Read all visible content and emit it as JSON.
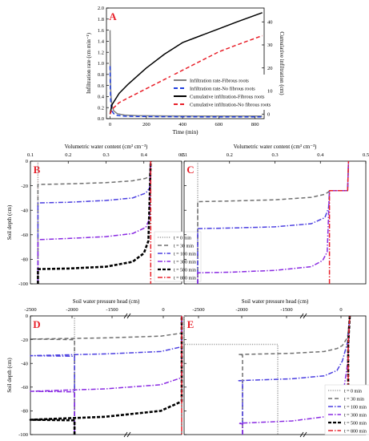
{
  "chart_data": [
    {
      "panel": "A",
      "type": "line",
      "xlabel": "Time (min)",
      "ylabel": "Infiltration rate (cm min⁻¹)",
      "y2label": "Cumulative infiltration (cm)",
      "xlim": [
        -20,
        850
      ],
      "ylim": [
        0,
        2.0
      ],
      "y2lim": [
        -2,
        46
      ],
      "xticks": [
        0,
        200,
        400,
        600,
        800
      ],
      "yticks": [
        "0.0",
        "0.2",
        "0.4",
        "0.6",
        "0.8",
        "1.0",
        "1.2",
        "1.4",
        "1.6",
        "1.8",
        "2.0"
      ],
      "y2ticks": [
        0,
        10,
        20,
        30,
        40
      ],
      "legend_position": "right",
      "series": [
        {
          "name": "Infiltration rate-Fibrous roots",
          "axis": "left",
          "color": "#808080",
          "dash": "solid",
          "x": [
            0,
            1,
            3,
            5,
            8,
            12,
            20,
            40,
            80,
            150,
            300,
            500,
            840
          ],
          "y": [
            1.6,
            1.0,
            0.55,
            0.4,
            0.3,
            0.22,
            0.14,
            0.09,
            0.065,
            0.055,
            0.05,
            0.048,
            0.046
          ]
        },
        {
          "name": "Infiltration rate-No fibrous roots",
          "axis": "left",
          "color": "#1f3fe0",
          "dash": "dashed",
          "x": [
            0,
            1,
            3,
            5,
            8,
            12,
            20,
            40,
            80,
            150,
            300,
            500,
            840
          ],
          "y": [
            0.95,
            0.6,
            0.35,
            0.25,
            0.18,
            0.13,
            0.09,
            0.06,
            0.045,
            0.04,
            0.036,
            0.034,
            0.032
          ]
        },
        {
          "name": "Cumulative infiltration-Fibrous roots",
          "axis": "right",
          "color": "#000000",
          "dash": "solid",
          "x": [
            0,
            10,
            50,
            100,
            200,
            300,
            400,
            500,
            600,
            700,
            840
          ],
          "y": [
            0,
            4,
            9,
            13,
            20,
            26,
            31,
            34,
            37,
            40,
            44
          ]
        },
        {
          "name": "Cumulative infiltration-No fibrous roots",
          "axis": "right",
          "color": "#e8202a",
          "dash": "dashed",
          "x": [
            0,
            10,
            50,
            100,
            200,
            300,
            400,
            500,
            600,
            700,
            840
          ],
          "y": [
            0,
            2,
            5,
            7,
            11,
            15,
            19,
            23,
            27,
            30,
            34
          ]
        }
      ]
    },
    {
      "panel": "B",
      "type": "line",
      "top_xlabel": "Volumetric water content (cm³ cm⁻³)",
      "ylabel": "Soil depth (cm)",
      "xlim": [
        0.1,
        0.5
      ],
      "ylim": [
        -100,
        0
      ],
      "xticks": [
        "0.1",
        "0.2",
        "0.3",
        "0.4",
        "0.5"
      ],
      "yticks": [
        "0",
        "-20",
        "-40",
        "-60",
        "-80",
        "-100"
      ],
      "series": [
        {
          "name": "t = 0  min",
          "color": "#a0a0a0",
          "dash": "dotted",
          "x": [
            0.12,
            0.12,
            0.12
          ],
          "y": [
            0,
            -50,
            -100
          ]
        },
        {
          "name": "t = 30  min",
          "color": "#707070",
          "dash": "dashed",
          "x": [
            0.12,
            0.12,
            0.2,
            0.3,
            0.37,
            0.405,
            0.415,
            0.418
          ],
          "y": [
            -100,
            -19,
            -18.5,
            -17.5,
            -16,
            -14,
            -12,
            0
          ]
        },
        {
          "name": "t = 100 min",
          "color": "#4b3fe0",
          "dash": "dashdot",
          "x": [
            0.12,
            0.12,
            0.2,
            0.3,
            0.37,
            0.405,
            0.415,
            0.418
          ],
          "y": [
            -100,
            -34,
            -33.5,
            -32,
            -30,
            -26,
            -22,
            0
          ]
        },
        {
          "name": "t = 300 min",
          "color": "#8a2be2",
          "dash": "dashdot",
          "x": [
            0.12,
            0.12,
            0.2,
            0.3,
            0.37,
            0.405,
            0.415,
            0.418
          ],
          "y": [
            -100,
            -64,
            -63,
            -61.5,
            -59,
            -54,
            -47,
            0
          ]
        },
        {
          "name": "t = 500 min",
          "color": "#000000",
          "dash": "bigdash",
          "x": [
            0.12,
            0.12,
            0.2,
            0.3,
            0.37,
            0.4,
            0.412,
            0.418
          ],
          "y": [
            -100,
            -88,
            -87.5,
            -86,
            -82,
            -75,
            -65,
            0
          ]
        },
        {
          "name": "t = 800 min",
          "color": "#e8202a",
          "dash": "dashdot",
          "x": [
            0.418,
            0.418
          ],
          "y": [
            0,
            -100
          ]
        }
      ],
      "vline": {
        "color": "#e8202a",
        "dash": "dotted",
        "x": 0.12
      }
    },
    {
      "panel": "C",
      "type": "line",
      "top_xlabel": "Volumetric water content (cm³ cm⁻³)",
      "xlim": [
        0.1,
        0.5
      ],
      "ylim": [
        -100,
        0
      ],
      "xticks": [
        "0.1",
        "0.2",
        "0.3",
        "0.4",
        "0.5"
      ],
      "series": [
        {
          "name": "t = 0  min",
          "color": "#a0a0a0",
          "dash": "dotted",
          "x": [
            0.13,
            0.13,
            0.13
          ],
          "y": [
            0,
            -50,
            -100
          ]
        },
        {
          "name": "t = 30  min",
          "color": "#707070",
          "dash": "dashed",
          "x": [
            0.13,
            0.13,
            0.2,
            0.3,
            0.38,
            0.41,
            0.418,
            0.42,
            0.46,
            0.462
          ],
          "y": [
            -100,
            -33,
            -32.5,
            -31.5,
            -29.5,
            -27,
            -25,
            -24,
            -24,
            0
          ]
        },
        {
          "name": "t = 100 min",
          "color": "#4b3fe0",
          "dash": "dashdot",
          "x": [
            0.13,
            0.13,
            0.2,
            0.3,
            0.38,
            0.41,
            0.418,
            0.42,
            0.46,
            0.462
          ],
          "y": [
            -100,
            -55,
            -54.5,
            -53.5,
            -51,
            -46,
            -38,
            -24,
            -24,
            0
          ]
        },
        {
          "name": "t = 300 min",
          "color": "#8a2be2",
          "dash": "dashdot",
          "x": [
            0.13,
            0.13,
            0.2,
            0.3,
            0.38,
            0.405,
            0.415,
            0.42,
            0.46,
            0.462
          ],
          "y": [
            -100,
            -91,
            -90.5,
            -89,
            -86,
            -81,
            -74,
            -24,
            -24,
            0
          ]
        },
        {
          "name": "t = 800 min",
          "color": "#e8202a",
          "dash": "dashdot",
          "x": [
            0.42,
            0.42,
            0.46,
            0.462
          ],
          "y": [
            -100,
            -24,
            -24,
            0
          ]
        }
      ]
    },
    {
      "panel": "D",
      "type": "line",
      "top_xlabel": "Soil water pressure head  (cm)",
      "ylabel": "Soil depth (cm)",
      "xlim": [
        -2500,
        80
      ],
      "ylim": [
        -100,
        0
      ],
      "xticks": [
        "-2500",
        "-2000",
        "-1500",
        "0"
      ],
      "yticks": [
        "0",
        "-20",
        "-40",
        "-60",
        "-80",
        "-100"
      ],
      "axis_break": true,
      "series": [
        {
          "name": "t = 0  min",
          "color": "#a0a0a0",
          "dash": "dotted",
          "x": [
            -1960,
            -1960
          ],
          "y": [
            0,
            -100
          ]
        },
        {
          "name": "t = 30  min",
          "color": "#707070",
          "dash": "dashed",
          "x": [
            -1960,
            -1960,
            -1000,
            -500,
            -200,
            -60,
            -10,
            5
          ],
          "y": [
            -100,
            -20,
            -19.5,
            -18.5,
            -17,
            -14.5,
            -10,
            0
          ]
        },
        {
          "name": "t = 100 min",
          "color": "#4b3fe0",
          "dash": "dashdot",
          "x": [
            -1960,
            -1960,
            -1000,
            -500,
            -200,
            -60,
            -10,
            5
          ],
          "y": [
            -100,
            -34,
            -33.5,
            -32,
            -30,
            -26,
            -18,
            0
          ]
        },
        {
          "name": "t = 300 min",
          "color": "#8a2be2",
          "dash": "dashdot",
          "x": [
            -1960,
            -1960,
            -1000,
            -500,
            -200,
            -60,
            -10,
            5
          ],
          "y": [
            -100,
            -64,
            -63.5,
            -61.5,
            -58,
            -52,
            -40,
            0
          ]
        },
        {
          "name": "t = 500 min",
          "color": "#000000",
          "dash": "bigdash",
          "x": [
            -1960,
            -1960,
            -1000,
            -500,
            -200,
            -60,
            -10,
            5
          ],
          "y": [
            -100,
            -88,
            -87.5,
            -85,
            -80,
            -72,
            -55,
            0
          ]
        },
        {
          "name": "t = 800 min",
          "color": "#e8202a",
          "dash": "dashdot",
          "x": [
            5,
            5
          ],
          "y": [
            0,
            -100
          ]
        }
      ]
    },
    {
      "panel": "E",
      "type": "line",
      "top_xlabel": "Soil water pressure head  (cm)",
      "xlim": [
        -2800,
        100
      ],
      "ylim": [
        -100,
        0
      ],
      "xticks": [
        "-2500",
        "-2000",
        "-1500",
        "0"
      ],
      "axis_break": true,
      "legend_position": "right",
      "series": [
        {
          "name": "t = 0 min",
          "color": "#a0a0a0",
          "dash": "dotted",
          "x": [
            -2700,
            -2700,
            -1600,
            -1600
          ],
          "y": [
            0,
            -24,
            -24,
            -100
          ]
        },
        {
          "name": "t = 30  min",
          "color": "#707070",
          "dash": "dashed",
          "x": [
            -2000,
            -2000,
            -1000,
            -500,
            -200,
            -80,
            -30,
            20,
            40
          ],
          "y": [
            -100,
            -33,
            -32.5,
            -31.5,
            -30,
            -27.5,
            -25,
            -18,
            0
          ]
        },
        {
          "name": "t = 100 min",
          "color": "#4b3fe0",
          "dash": "dashdot",
          "x": [
            -2000,
            -2000,
            -1000,
            -500,
            -200,
            -80,
            -30,
            20,
            40
          ],
          "y": [
            -100,
            -55,
            -54.5,
            -53,
            -50.5,
            -46,
            -38,
            -22,
            0
          ]
        },
        {
          "name": "t = 300 min",
          "color": "#8a2be2",
          "dash": "dashdot",
          "x": [
            -2000,
            -2000,
            -1000,
            -500,
            -200,
            -80,
            -30,
            20,
            40
          ],
          "y": [
            -100,
            -91,
            -90.5,
            -88.5,
            -85,
            -79,
            -70,
            -40,
            0
          ]
        },
        {
          "name": "t = 500 min",
          "color": "#000000",
          "dash": "bigdash",
          "x": [
            25,
            25,
            40
          ],
          "y": [
            -100,
            -24,
            0
          ]
        },
        {
          "name": "t = 800 min",
          "color": "#e8202a",
          "dash": "dashdot",
          "x": [
            25,
            25,
            40
          ],
          "y": [
            -100,
            -24,
            0
          ]
        }
      ]
    }
  ]
}
